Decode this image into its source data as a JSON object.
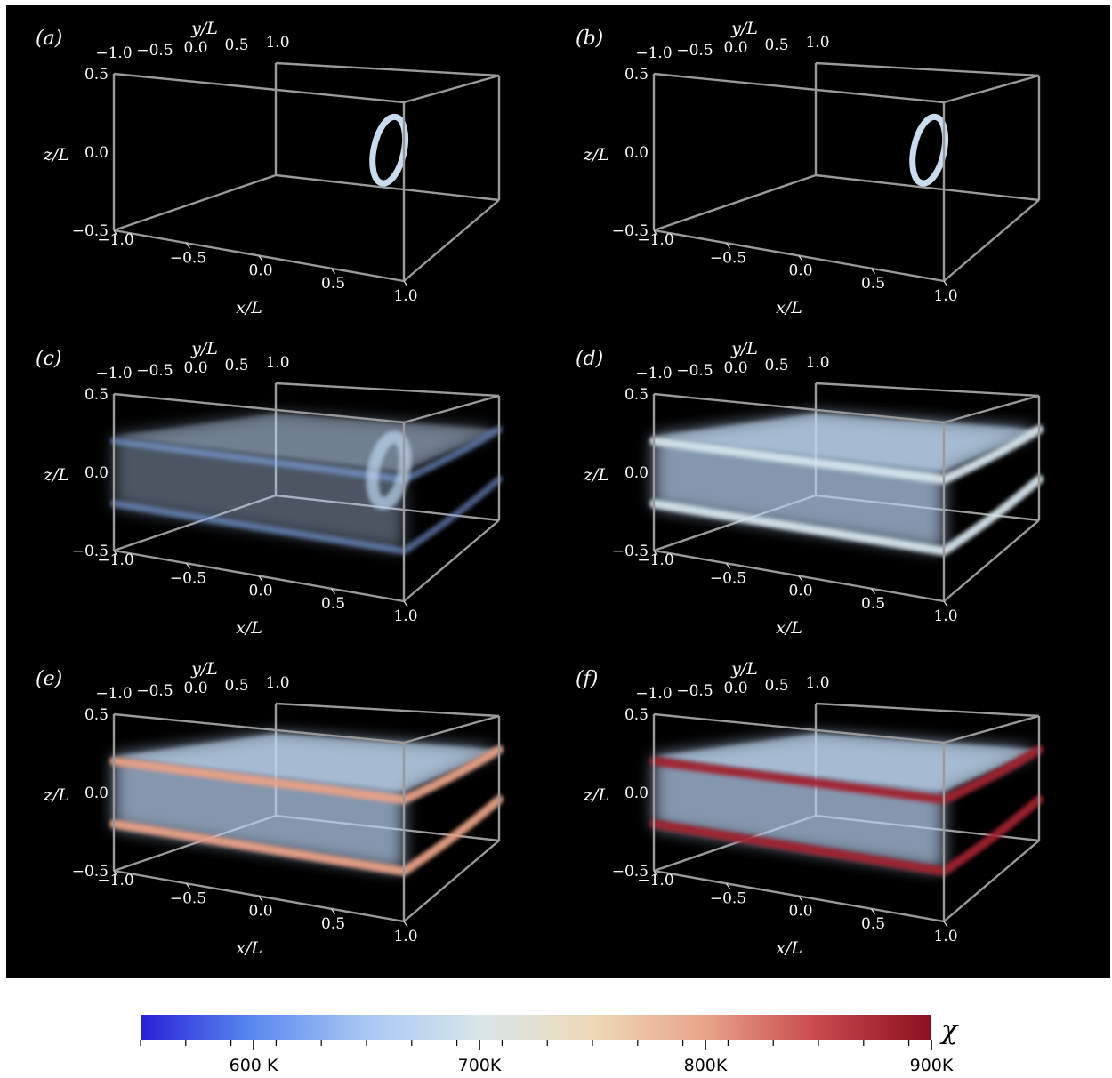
{
  "chart_data": {
    "type": "volume-3d-grid",
    "axes": {
      "x": {
        "label": "x/L",
        "ticks": [
          "−1.0",
          "−0.5",
          "0.0",
          "0.5",
          "1.0"
        ],
        "range": [
          -1.0,
          1.0
        ]
      },
      "y": {
        "label": "y/L",
        "ticks": [
          "−1.0",
          "−0.5",
          "0.0",
          "0.5",
          "1.0"
        ],
        "range": [
          -1.0,
          1.0
        ]
      },
      "z": {
        "label": "z/L",
        "ticks": [
          "−0.5",
          "0.0",
          "0.5"
        ],
        "range": [
          -0.5,
          0.5
        ]
      }
    },
    "panels": [
      {
        "label": "(a)",
        "state": "ring",
        "ring_level": 0.38,
        "glow": 0.0,
        "layer_level": 0.0
      },
      {
        "label": "(b)",
        "state": "ring",
        "ring_level": 0.38,
        "glow": 0.0,
        "layer_level": 0.0
      },
      {
        "label": "(c)",
        "state": "diffuse",
        "ring_level": 0.35,
        "glow": 0.45,
        "layer_level": 0.22
      },
      {
        "label": "(d)",
        "state": "layers",
        "ring_level": 0.0,
        "glow": 0.8,
        "layer_level": 0.42
      },
      {
        "label": "(e)",
        "state": "layers",
        "ring_level": 0.0,
        "glow": 0.8,
        "layer_level": 0.72
      },
      {
        "label": "(f)",
        "state": "layers",
        "ring_level": 0.0,
        "glow": 0.8,
        "layer_level": 0.95
      }
    ],
    "colorbar": {
      "label": "χ",
      "min": 550,
      "max": 900,
      "tick_values": [
        600,
        700,
        800,
        900
      ],
      "tick_labels": [
        "600 K",
        "700K",
        "800K",
        "900K"
      ],
      "minor_step": 20,
      "colormap": [
        "#2820d8",
        "#5a8af0",
        "#a9c8f4",
        "#d8e6ea",
        "#eed9b8",
        "#e8a488",
        "#c8484c",
        "#8a1020"
      ]
    }
  }
}
